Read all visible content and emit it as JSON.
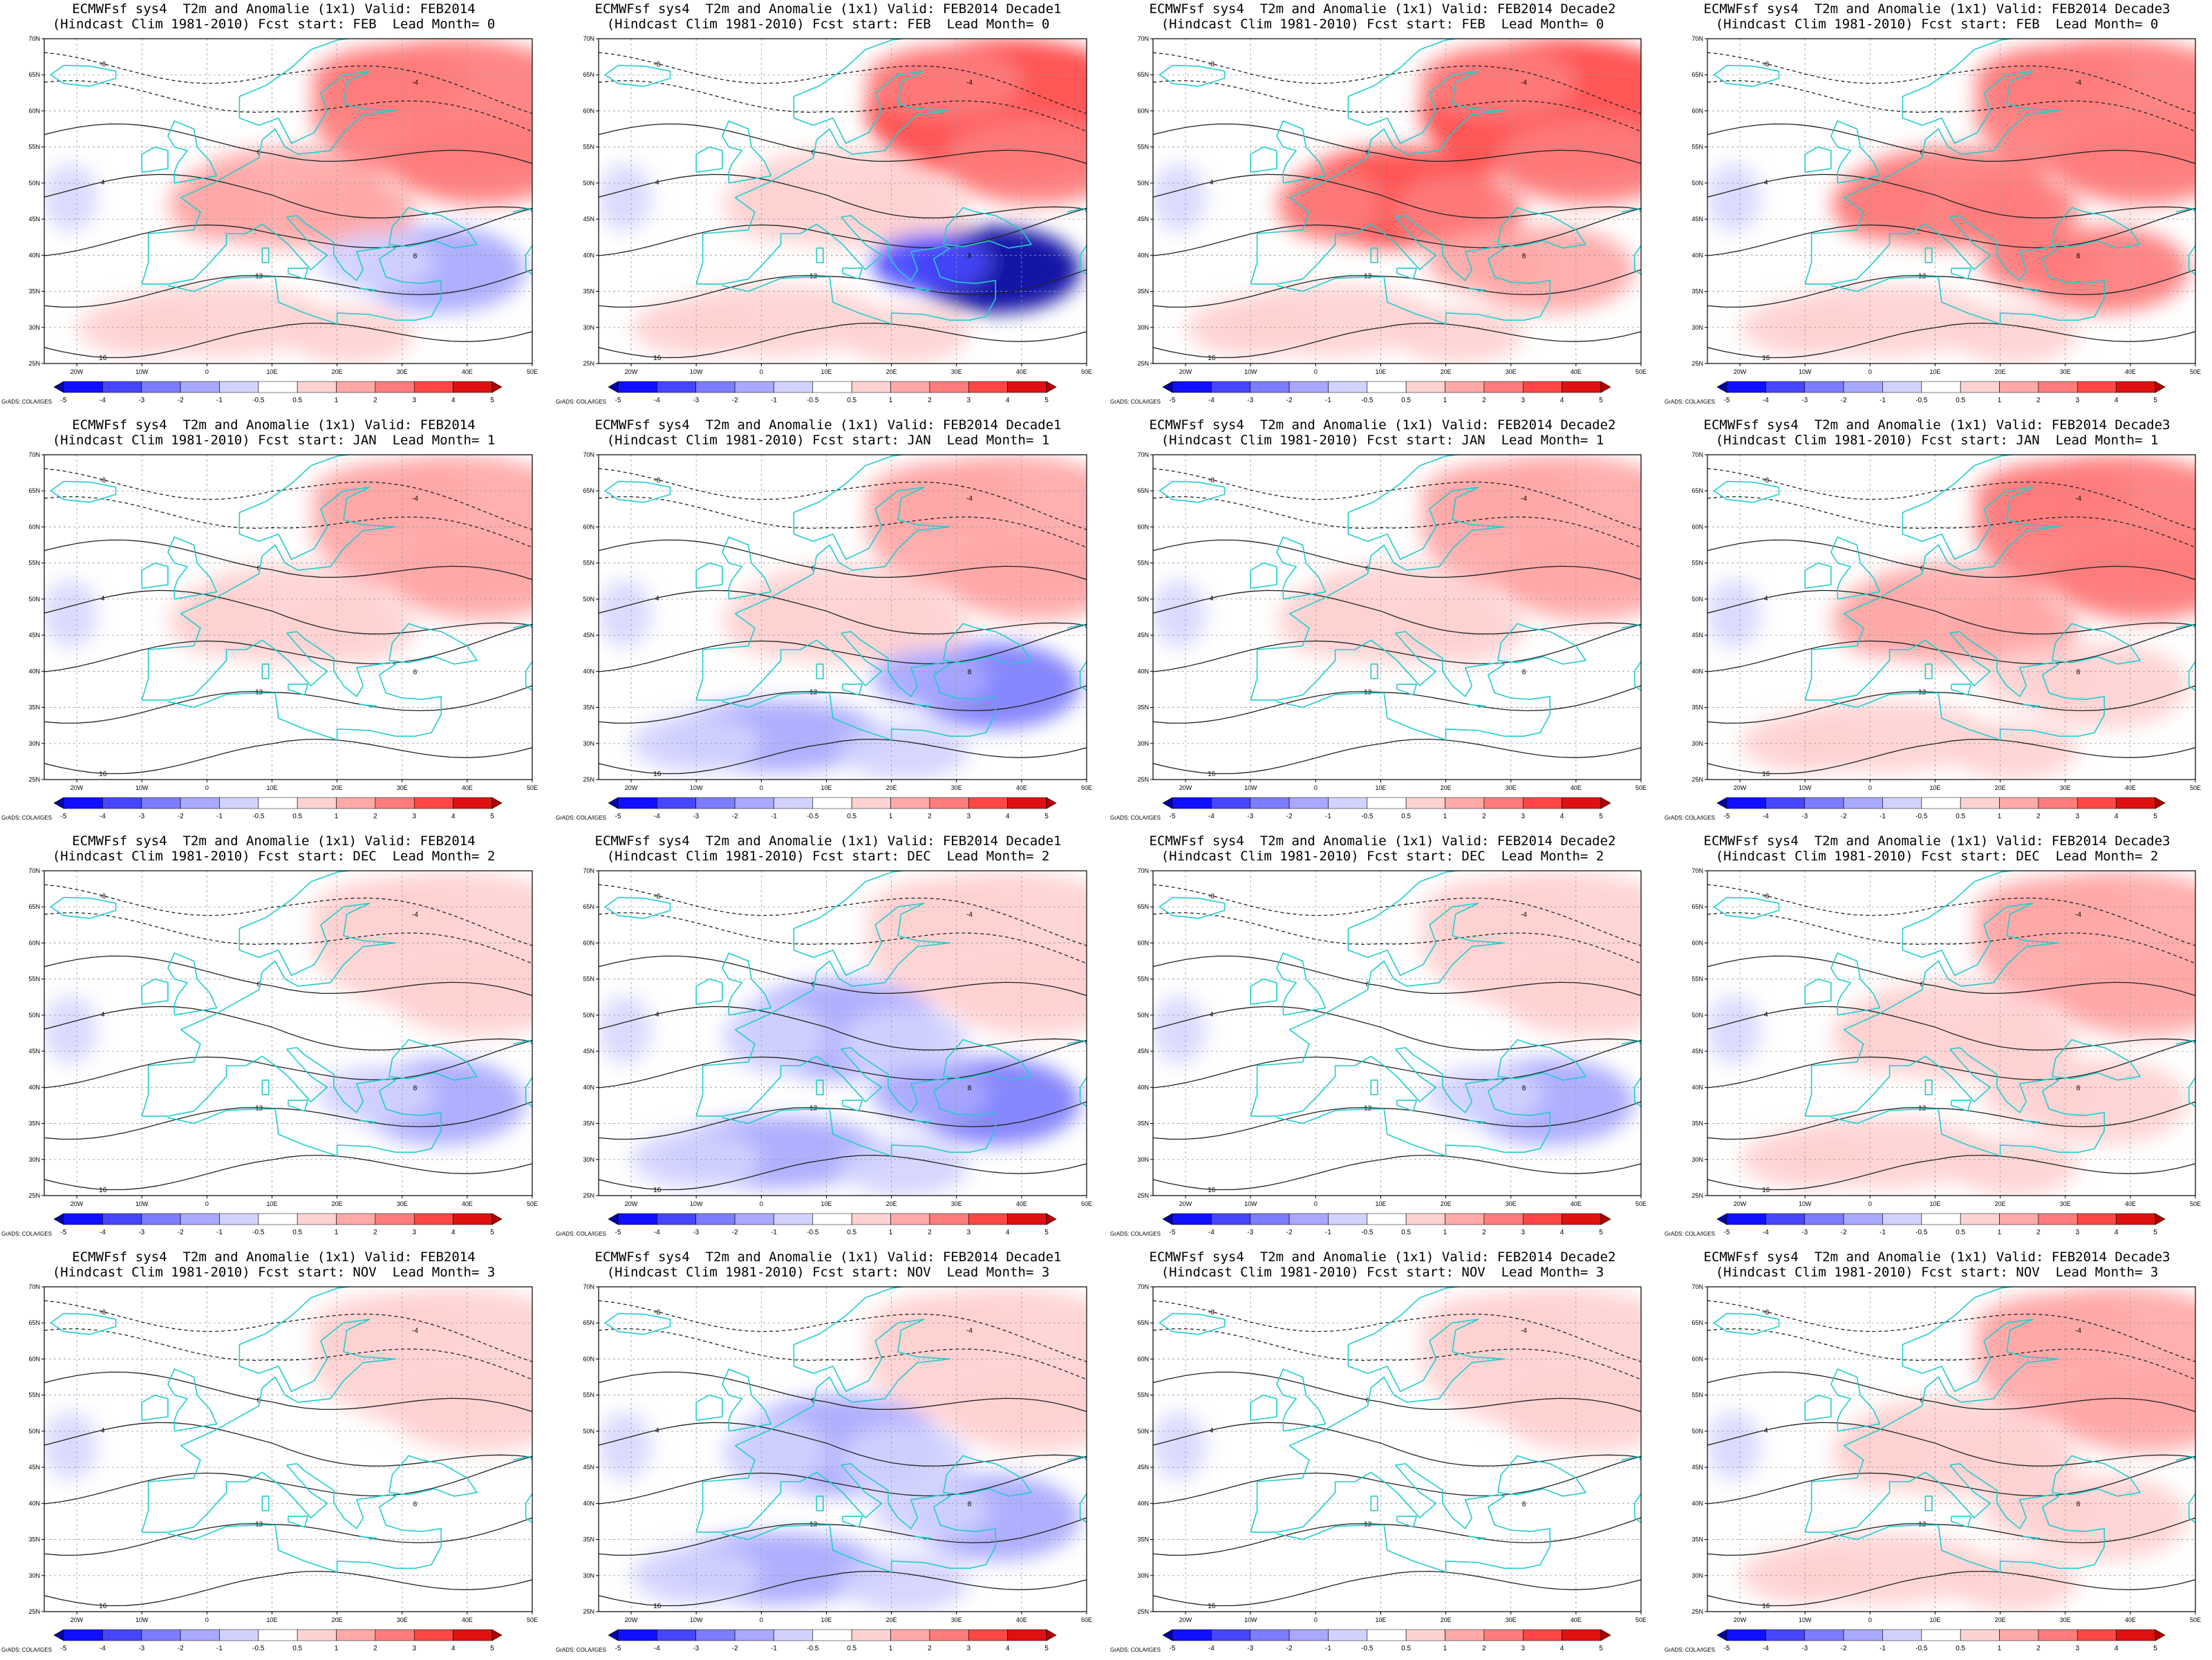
{
  "figure": {
    "rows": 4,
    "cols": 4,
    "title_prefix": "ECMWFsf sys4  T2m and Anomalie (1x1)",
    "clim_text": "(Hindcast Clim 1981-2010)",
    "valid_labels": [
      "Valid: FEB2014",
      "Valid: FEB2014 Decade1",
      "Valid: FEB2014 Decade2",
      "Valid: FEB2014 Decade3"
    ],
    "fcst_starts": [
      {
        "month": "FEB",
        "lead": "0"
      },
      {
        "month": "JAN",
        "lead": "1"
      },
      {
        "month": "DEC",
        "lead": "2"
      },
      {
        "month": "NOV",
        "lead": "3"
      }
    ]
  },
  "map": {
    "region": "Europe / Mediterranean",
    "lon_range": [
      -25,
      50
    ],
    "lat_range": [
      25,
      70
    ],
    "lon_ticks": [
      "20W",
      "10W",
      "0",
      "10E",
      "20E",
      "30E",
      "40E",
      "50E"
    ],
    "lat_ticks": [
      "70N",
      "65N",
      "60N",
      "55N",
      "50N",
      "45N",
      "40N",
      "35N",
      "30N",
      "25N"
    ],
    "contour_labels": [
      "-12",
      "-8",
      "-4",
      "0",
      "4",
      "8",
      "12",
      "16"
    ],
    "coast_color": "#22cccc",
    "contour_color": "#222222"
  },
  "colorbar": {
    "labels": [
      "-5",
      "-4",
      "-3",
      "-2",
      "-1",
      "-0.5",
      "0.5",
      "1",
      "2",
      "3",
      "4",
      "5"
    ],
    "colors": [
      "#0000a0",
      "#1010ff",
      "#4646ff",
      "#7c7cff",
      "#a8a8ff",
      "#d2d2ff",
      "#ffffff",
      "#ffd2d2",
      "#ffa8a8",
      "#ff7c7c",
      "#ff4646",
      "#e01010",
      "#b00000"
    ],
    "credit": "GrADS: COLA/IGES"
  },
  "anomaly_summary": {
    "note": "approximate dominant anomaly pattern per panel (degC), rows = lead month 0..3, cols = month, decade1..3",
    "panels": [
      [
        {
          "north_east": 3,
          "central": 2,
          "south_east": -1,
          "africa": 1
        },
        {
          "north_east": 4,
          "central": 1,
          "south_east": -5,
          "africa": 1
        },
        {
          "north_east": 4,
          "central": 4,
          "south_east": 2,
          "africa": 1
        },
        {
          "north_east": 3,
          "central": 3,
          "south_east": 3,
          "africa": 1
        }
      ],
      [
        {
          "north_east": 2,
          "central": 1,
          "south_east": 0,
          "africa": 0
        },
        {
          "north_east": 2,
          "central": 1,
          "south_east": -2,
          "africa": -1
        },
        {
          "north_east": 2,
          "central": 1,
          "south_east": 0,
          "africa": 0
        },
        {
          "north_east": 3,
          "central": 2,
          "south_east": 1,
          "africa": 1
        }
      ],
      [
        {
          "north_east": 1,
          "central": 0,
          "south_east": -1,
          "africa": 0
        },
        {
          "north_east": 1,
          "central": -1,
          "south_east": -2,
          "africa": -1
        },
        {
          "north_east": 1,
          "central": 0,
          "south_east": -1,
          "africa": 0
        },
        {
          "north_east": 2,
          "central": 1,
          "south_east": 1,
          "africa": 1
        }
      ],
      [
        {
          "north_east": 1,
          "central": 0,
          "south_east": 0,
          "africa": 0
        },
        {
          "north_east": 1,
          "central": -1,
          "south_east": -1,
          "africa": -1
        },
        {
          "north_east": 1,
          "central": 0,
          "south_east": 0,
          "africa": 0
        },
        {
          "north_east": 2,
          "central": 1,
          "south_east": 1,
          "africa": 1
        }
      ]
    ]
  }
}
